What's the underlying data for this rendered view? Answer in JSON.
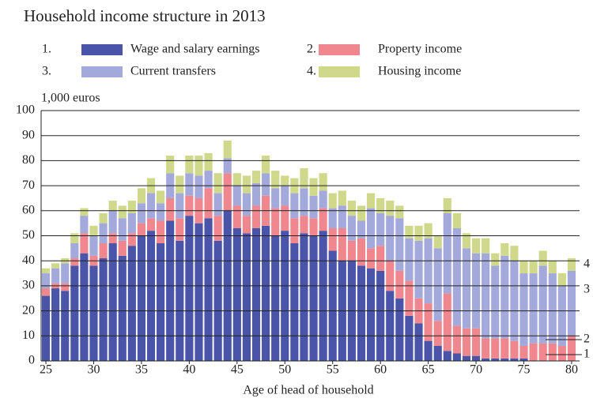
{
  "chart_data": {
    "type": "stacked_bar",
    "title": "Household income structure in 2013",
    "y_unit": "1,000 euros",
    "xlabel": "Age of head of household",
    "x": [
      25,
      26,
      27,
      28,
      29,
      30,
      31,
      32,
      33,
      34,
      35,
      36,
      37,
      38,
      39,
      40,
      41,
      42,
      43,
      44,
      45,
      46,
      47,
      48,
      49,
      50,
      51,
      52,
      53,
      54,
      55,
      56,
      57,
      58,
      59,
      60,
      61,
      62,
      63,
      64,
      65,
      66,
      67,
      68,
      69,
      70,
      71,
      72,
      73,
      74,
      75,
      76,
      77,
      78,
      79,
      80
    ],
    "xlim": [
      24.5,
      80.5
    ],
    "xticks": [
      25,
      30,
      35,
      40,
      45,
      50,
      55,
      60,
      65,
      70,
      75,
      80
    ],
    "ylim": [
      0,
      100
    ],
    "yticks": [
      0,
      10,
      20,
      30,
      40,
      50,
      60,
      70,
      80,
      90,
      100
    ],
    "grid": true,
    "series": [
      {
        "name": "Wage and salary earnings",
        "index_label": "1.",
        "end_label": "1",
        "color": "#4a54a8",
        "values": [
          26,
          29,
          28,
          38,
          43,
          38,
          41,
          47,
          42,
          46,
          50,
          52,
          47,
          56,
          48,
          58,
          55,
          57,
          48,
          60,
          53,
          51,
          53,
          54,
          50,
          52,
          47,
          51,
          50,
          52,
          44,
          40,
          40,
          38,
          37,
          36,
          28,
          25,
          18,
          15,
          8,
          6,
          4,
          3,
          2,
          2,
          1,
          1,
          1,
          1,
          1,
          0,
          0,
          0,
          0,
          0
        ]
      },
      {
        "name": "Property income",
        "index_label": "2.",
        "end_label": "2",
        "color": "#f0878f",
        "values": [
          3,
          2,
          3,
          3,
          8,
          4,
          6,
          4,
          6,
          5,
          5,
          5,
          9,
          9,
          9,
          8,
          10,
          12,
          10,
          15,
          9,
          7,
          9,
          12,
          11,
          10,
          10,
          7,
          7,
          9,
          9,
          13,
          8,
          11,
          8,
          10,
          12,
          11,
          14,
          10,
          15,
          10,
          23,
          11,
          11,
          11,
          8,
          8,
          8,
          7,
          5,
          7,
          7,
          7,
          6,
          10
        ]
      },
      {
        "name": "Current transfers",
        "index_label": "3.",
        "end_label": "3",
        "color": "#a4a9dc",
        "values": [
          6,
          6,
          8,
          6,
          7,
          8,
          8,
          9,
          9,
          8,
          8,
          10,
          7,
          10,
          10,
          9,
          9,
          7,
          9,
          6,
          8,
          9,
          9,
          9,
          8,
          8,
          10,
          11,
          9,
          7,
          8,
          9,
          10,
          7,
          16,
          13,
          18,
          21,
          17,
          23,
          26,
          29,
          32,
          39,
          32,
          30,
          34,
          29,
          33,
          32,
          29,
          28,
          31,
          28,
          24,
          26
        ]
      },
      {
        "name": "Housing income",
        "index_label": "4.",
        "end_label": "4",
        "color": "#d0d88b",
        "values": [
          2,
          2,
          2,
          4,
          3,
          4,
          4,
          4,
          5,
          5,
          6,
          6,
          5,
          7,
          7,
          7,
          8,
          7,
          8,
          7,
          5,
          7,
          5,
          7,
          7,
          4,
          6,
          8,
          7,
          7,
          6,
          6,
          6,
          6,
          6,
          6,
          6,
          5,
          5,
          6,
          6,
          5,
          6,
          6,
          6,
          6,
          6,
          5,
          5,
          6,
          5,
          5,
          6,
          5,
          5,
          5
        ]
      }
    ]
  }
}
